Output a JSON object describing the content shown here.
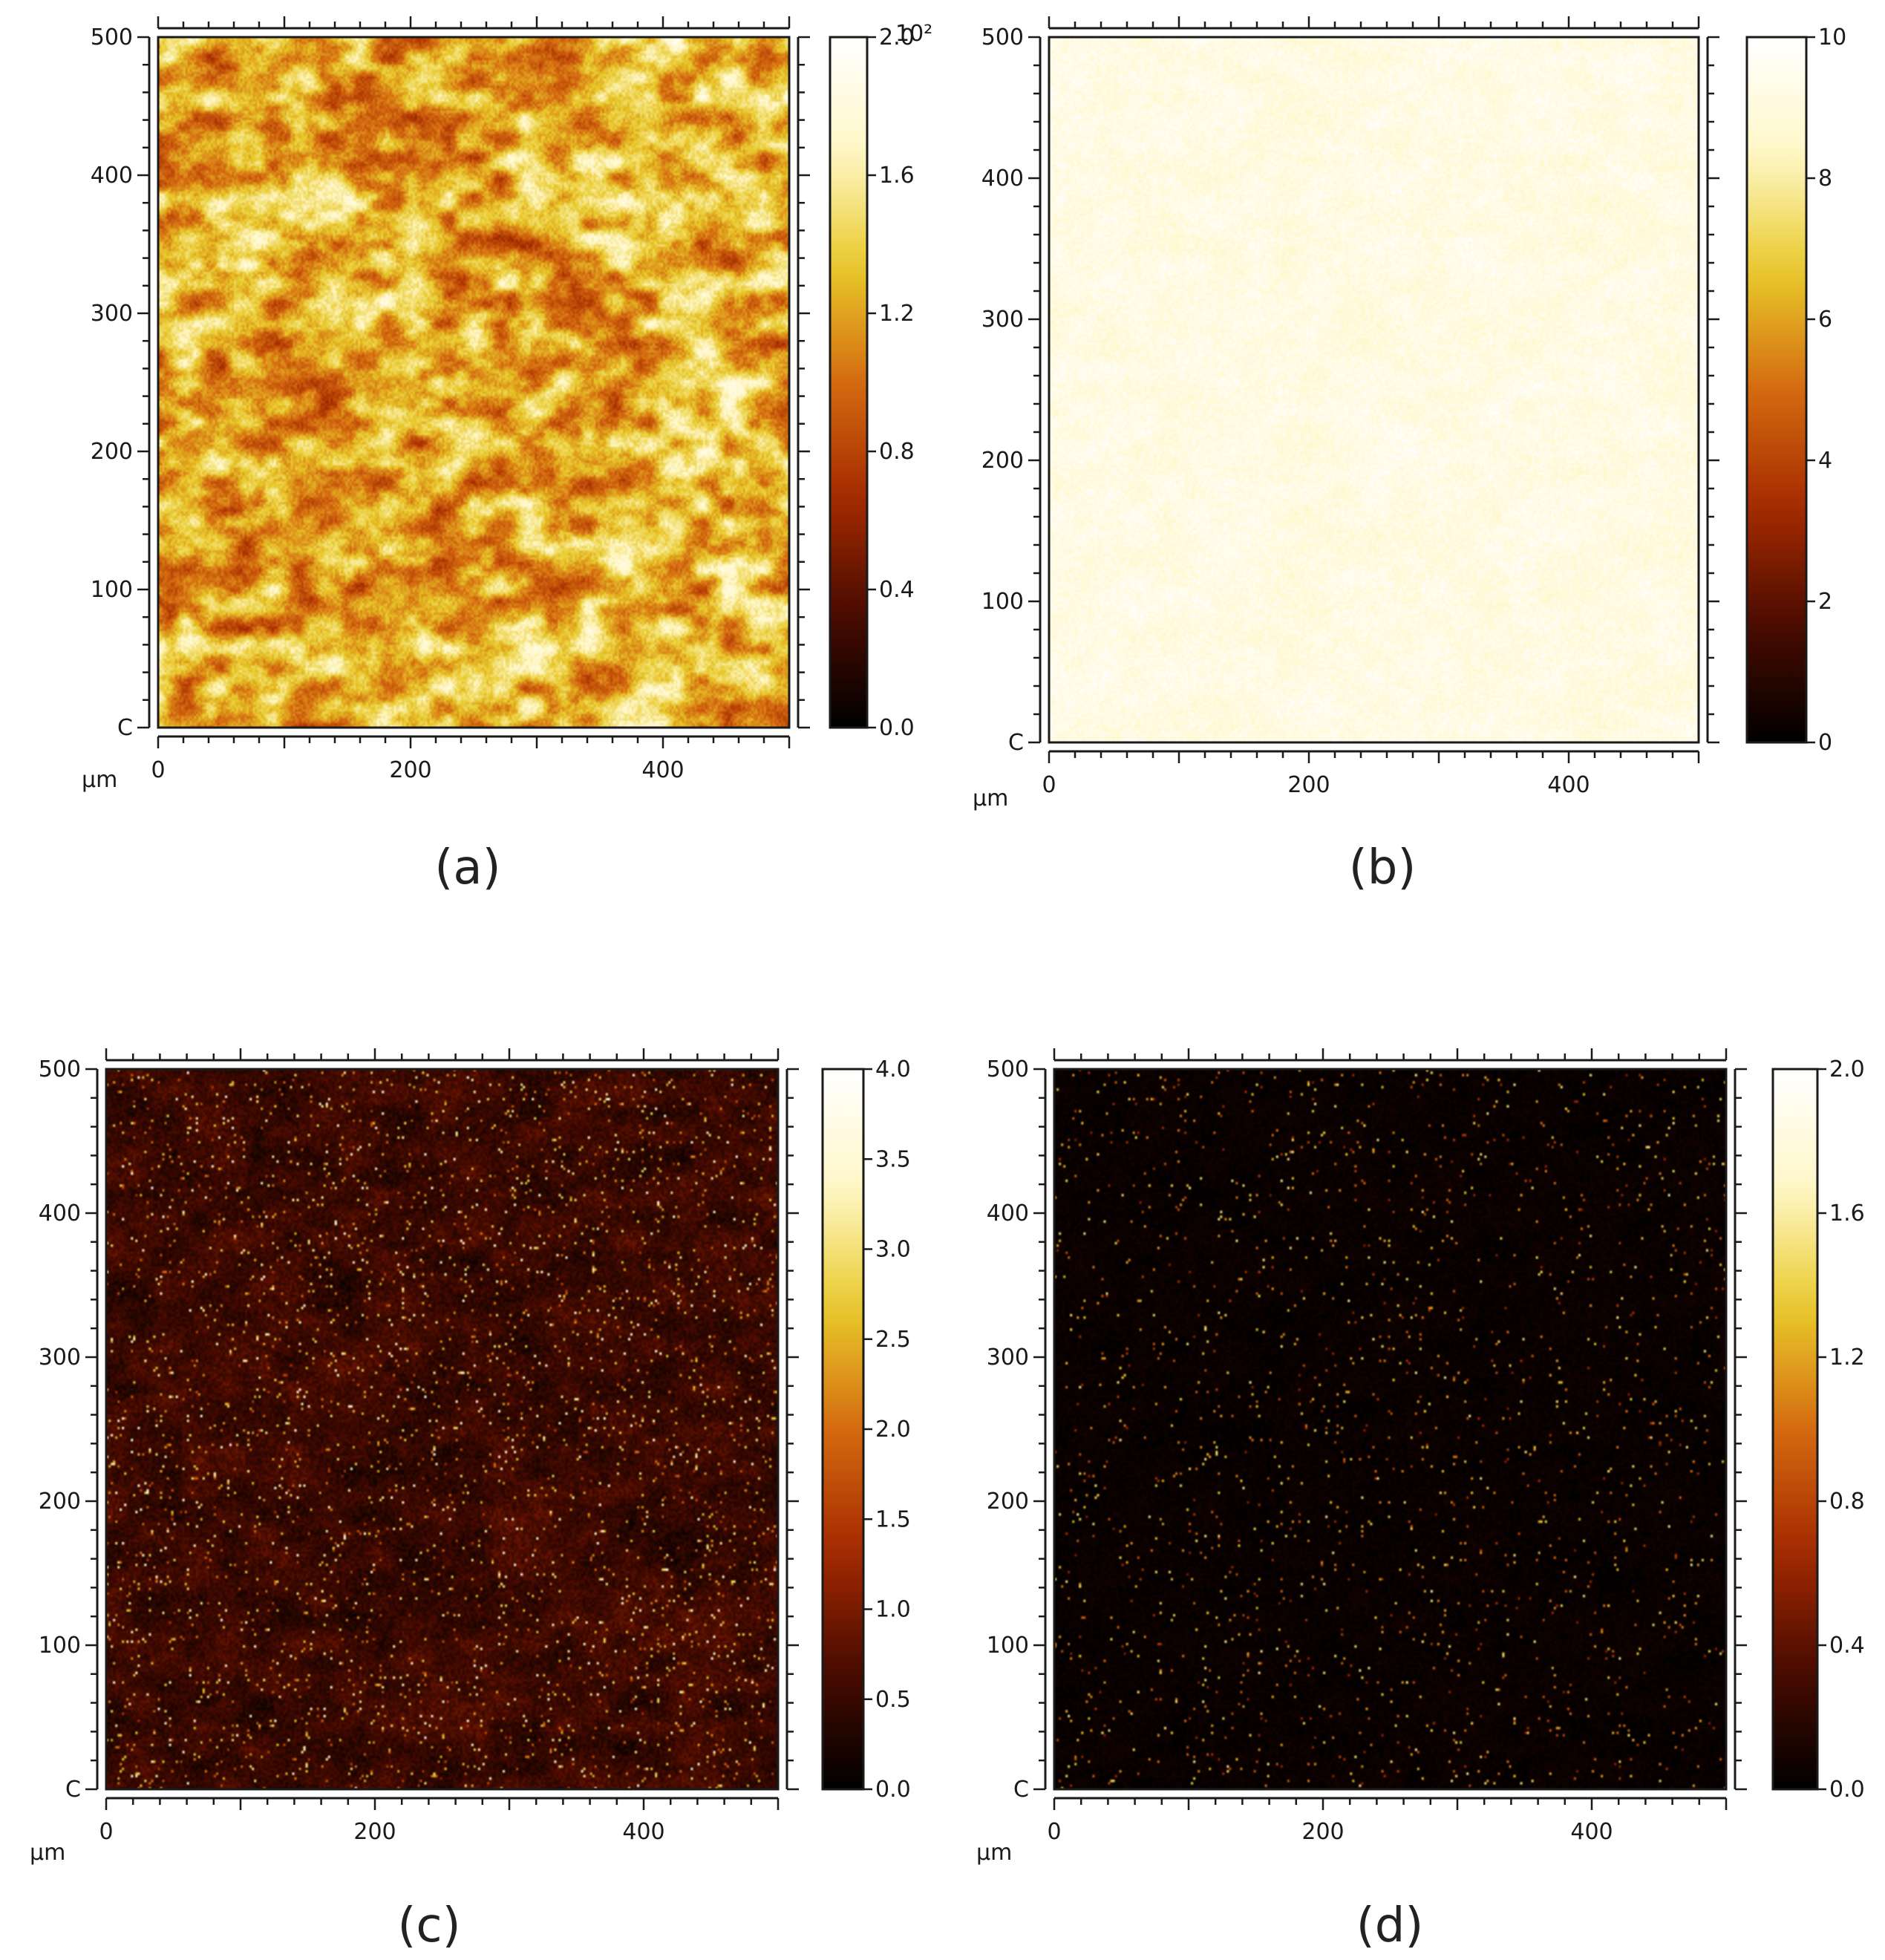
{
  "figure": {
    "panels": [
      {
        "id": "a",
        "label": "(a)"
      },
      {
        "id": "b",
        "label": "(b)"
      },
      {
        "id": "c",
        "label": "(c)"
      },
      {
        "id": "d",
        "label": "(d)"
      }
    ]
  },
  "colormap": {
    "name": "afmhot",
    "stops": [
      "#000000",
      "#4a0b00",
      "#a52a00",
      "#d46a10",
      "#e8c92a",
      "#fff7c6",
      "#ffffff"
    ]
  },
  "chart_data": [
    {
      "type": "heatmap",
      "panel": "(a)",
      "x_unit_label": "µm",
      "xlim": [
        0,
        500
      ],
      "ylim": [
        0,
        500
      ],
      "x_ticks": [
        0,
        200,
        400
      ],
      "x_tick_labels": [
        "0",
        "200",
        "400"
      ],
      "y_ticks": [
        0,
        100,
        200,
        300,
        400,
        500
      ],
      "y_tick_labels": [
        "C",
        "100",
        "200",
        "300",
        "400",
        "500"
      ],
      "colorbar": {
        "min": 0.0,
        "max": 2.0,
        "ticks": [
          0.0,
          0.4,
          0.8,
          1.2,
          1.6,
          2.0
        ],
        "tick_labels": [
          "0.0",
          "0.4",
          "0.8",
          "1.2",
          "1.6",
          "2.0"
        ],
        "exponent_label": "10²"
      },
      "pattern": {
        "mean": 0.62,
        "spread": 0.22,
        "noise": 0.06,
        "speckle": 0.0,
        "blob_scale": 1.0
      }
    },
    {
      "type": "heatmap",
      "panel": "(b)",
      "x_unit_label": "µm",
      "xlim": [
        0,
        500
      ],
      "ylim": [
        0,
        500
      ],
      "x_ticks": [
        0,
        200,
        400
      ],
      "x_tick_labels": [
        "0",
        "200",
        "400"
      ],
      "y_ticks": [
        0,
        100,
        200,
        300,
        400,
        500
      ],
      "y_tick_labels": [
        "C",
        "100",
        "200",
        "300",
        "400",
        "500"
      ],
      "colorbar": {
        "min": 0,
        "max": 10,
        "ticks": [
          0,
          2,
          4,
          6,
          8,
          10
        ],
        "tick_labels": [
          "0",
          "2",
          "4",
          "6",
          "8",
          "10"
        ]
      },
      "pattern": {
        "mean": 0.92,
        "spread": 0.03,
        "noise": 0.05,
        "speckle": 0.0,
        "blob_scale": 1.0
      }
    },
    {
      "type": "heatmap",
      "panel": "(c)",
      "x_unit_label": "µm",
      "xlim": [
        0,
        500
      ],
      "ylim": [
        0,
        500
      ],
      "x_ticks": [
        0,
        200,
        400
      ],
      "x_tick_labels": [
        "0",
        "200",
        "400"
      ],
      "y_ticks": [
        0,
        100,
        200,
        300,
        400,
        500
      ],
      "y_tick_labels": [
        "C",
        "100",
        "200",
        "300",
        "400",
        "500"
      ],
      "colorbar": {
        "min": 0.0,
        "max": 4.0,
        "ticks": [
          0.0,
          0.5,
          1.0,
          1.5,
          2.0,
          2.5,
          3.0,
          3.5,
          4.0
        ],
        "tick_labels": [
          "0.0",
          "0.5",
          "1.0",
          "1.5",
          "2.0",
          "2.5",
          "3.0",
          "3.5",
          "4.0"
        ]
      },
      "pattern": {
        "mean": 0.13,
        "spread": 0.05,
        "noise": 0.05,
        "speckle": 0.035,
        "blob_scale": 1.0
      }
    },
    {
      "type": "heatmap",
      "panel": "(d)",
      "x_unit_label": "µm",
      "xlim": [
        0,
        500
      ],
      "ylim": [
        0,
        500
      ],
      "x_ticks": [
        0,
        200,
        400
      ],
      "x_tick_labels": [
        "0",
        "200",
        "400"
      ],
      "y_ticks": [
        0,
        100,
        200,
        300,
        400,
        500
      ],
      "y_tick_labels": [
        "C",
        "100",
        "200",
        "300",
        "400",
        "500"
      ],
      "colorbar": {
        "min": 0.0,
        "max": 2.0,
        "ticks": [
          0.0,
          0.4,
          0.8,
          1.2,
          1.6,
          2.0
        ],
        "tick_labels": [
          "0.0",
          "0.4",
          "0.8",
          "1.2",
          "1.6",
          "2.0"
        ]
      },
      "pattern": {
        "mean": 0.02,
        "spread": 0.01,
        "noise": 0.02,
        "speckle": 0.02,
        "blob_scale": 1.0
      }
    }
  ]
}
